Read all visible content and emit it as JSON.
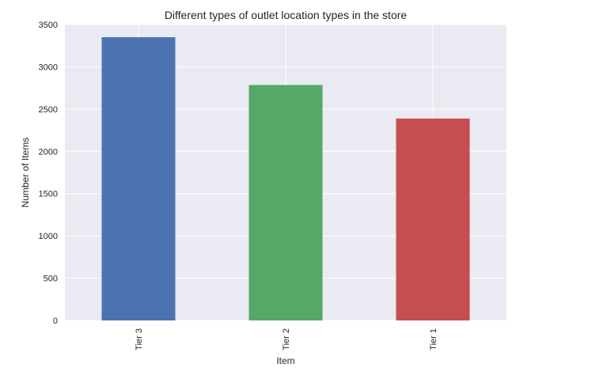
{
  "chart_data": {
    "type": "bar",
    "title": "Different types of outlet location types in the store",
    "xlabel": "Item",
    "ylabel": "Number of Items",
    "categories": [
      "Tier 3",
      "Tier 2",
      "Tier 1"
    ],
    "values": [
      3350,
      2785,
      2388
    ],
    "ylim": [
      0,
      3500
    ],
    "yticks": [
      "0",
      "500",
      "1000",
      "1500",
      "2000",
      "2500",
      "3000",
      "3500"
    ],
    "colors": [
      "#4c72b0",
      "#55a868",
      "#c44e52"
    ],
    "grid": true,
    "background": "#eaeaf2"
  }
}
